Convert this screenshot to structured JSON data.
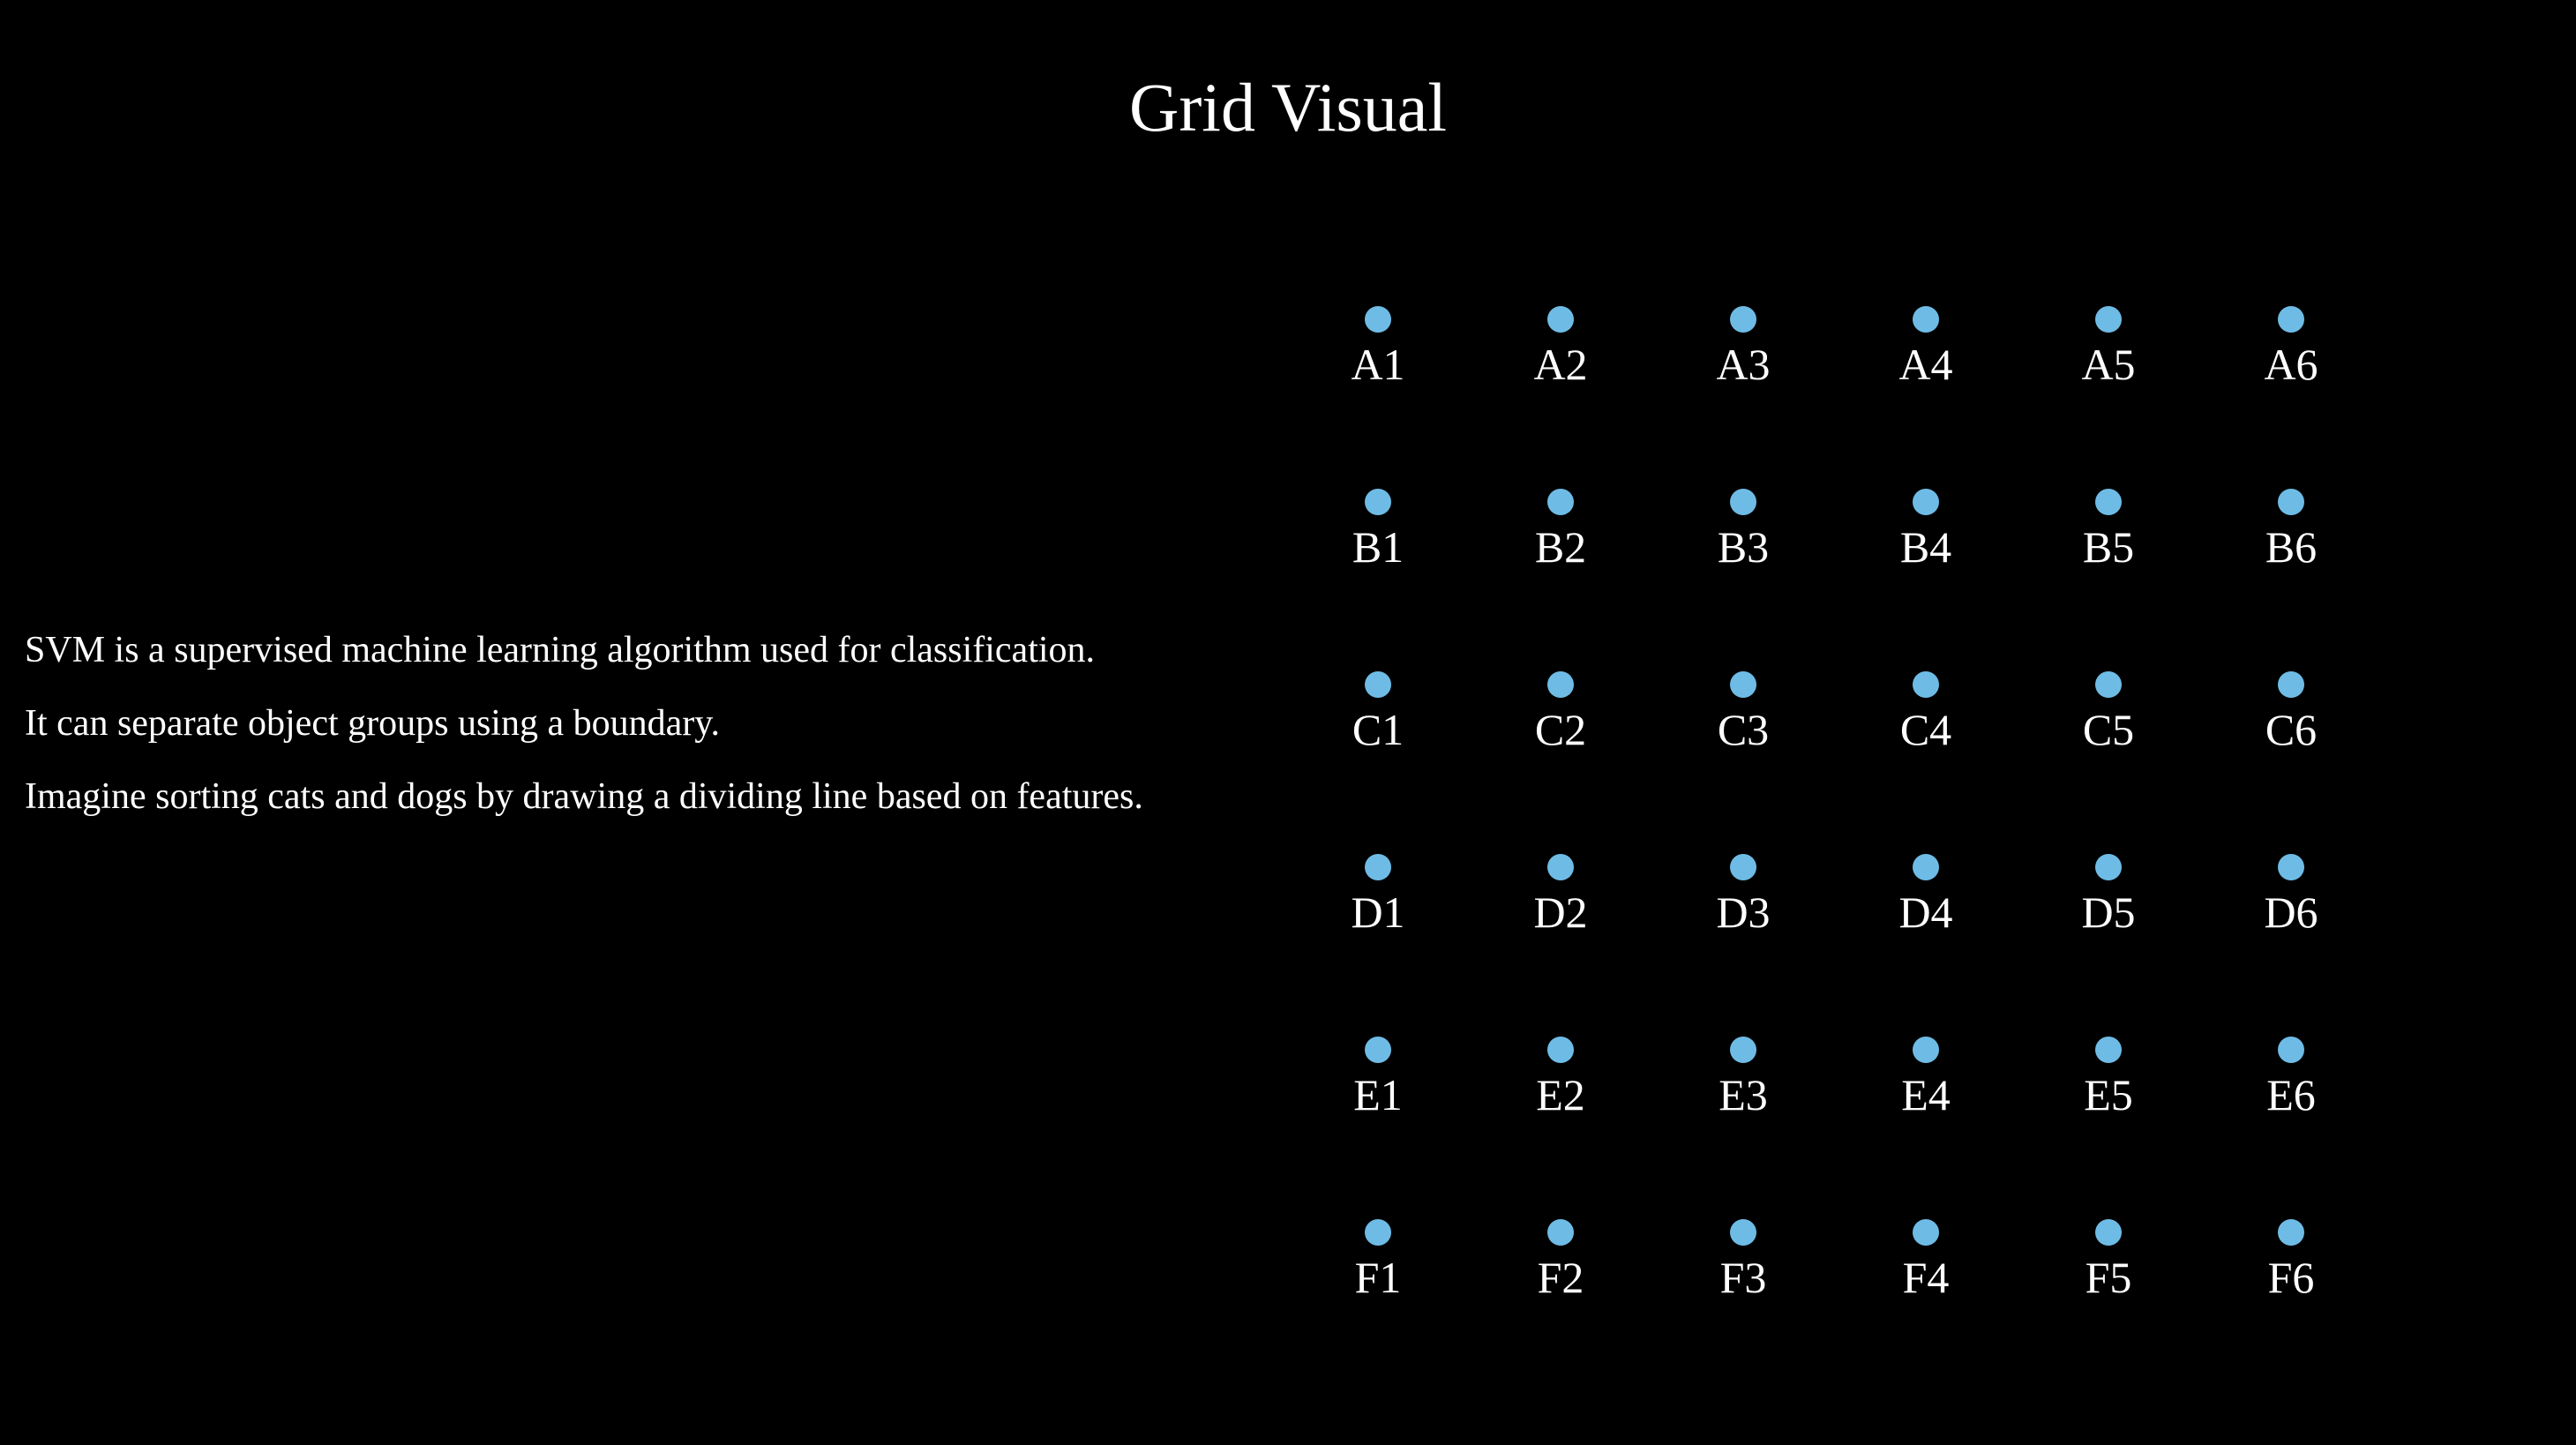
{
  "title": "Grid Visual",
  "description": [
    "SVM is a supervised machine learning algorithm used for classification.",
    "It can separate object groups using a boundary.",
    "Imagine sorting cats and dogs by drawing a dividing line based on features."
  ],
  "colors": {
    "background": "#000000",
    "text": "#ffffff",
    "dot": "#6ebce6"
  },
  "grid": {
    "rows": [
      "A",
      "B",
      "C",
      "D",
      "E",
      "F"
    ],
    "columns": [
      "1",
      "2",
      "3",
      "4",
      "5",
      "6"
    ],
    "labels": [
      [
        "A1",
        "A2",
        "A3",
        "A4",
        "A5",
        "A6"
      ],
      [
        "B1",
        "B2",
        "B3",
        "B4",
        "B5",
        "B6"
      ],
      [
        "C1",
        "C2",
        "C3",
        "C4",
        "C5",
        "C6"
      ],
      [
        "D1",
        "D2",
        "D3",
        "D4",
        "D5",
        "D6"
      ],
      [
        "E1",
        "E2",
        "E3",
        "E4",
        "E5",
        "E6"
      ],
      [
        "F1",
        "F2",
        "F3",
        "F4",
        "F5",
        "F6"
      ]
    ]
  }
}
